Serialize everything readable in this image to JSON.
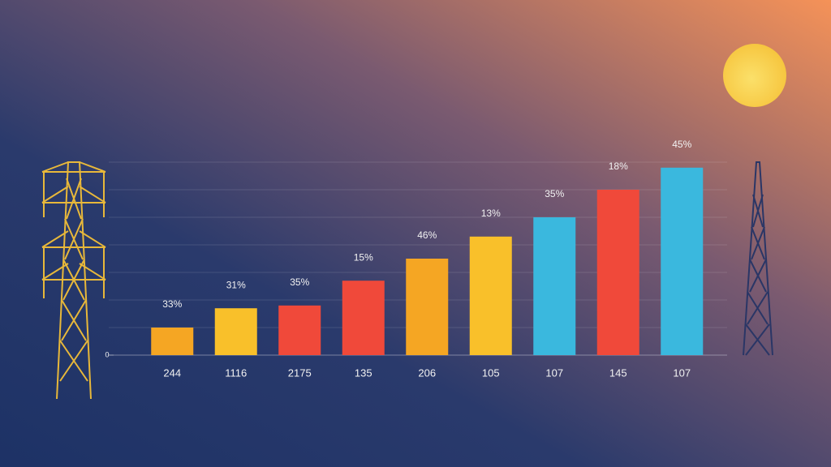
{
  "chart_data": {
    "type": "bar",
    "categories": [
      "244",
      "1116",
      "2175",
      "135",
      "206",
      "105",
      "107",
      "145",
      "107"
    ],
    "values": [
      1.0,
      1.7,
      1.8,
      2.7,
      3.5,
      4.3,
      5.0,
      6.0,
      6.8
    ],
    "annotations": [
      "33%",
      "31%",
      "35%",
      "15%",
      "46%",
      "13%",
      "35%",
      "18%",
      "45%"
    ],
    "colors": [
      "#f5a623",
      "#f9c02a",
      "#f0493a",
      "#f0493a",
      "#f5a623",
      "#f9c02a",
      "#3ab8de",
      "#f0493a",
      "#3ab8de"
    ],
    "ylim": [
      0,
      7
    ],
    "yticks": [
      0
    ]
  }
}
